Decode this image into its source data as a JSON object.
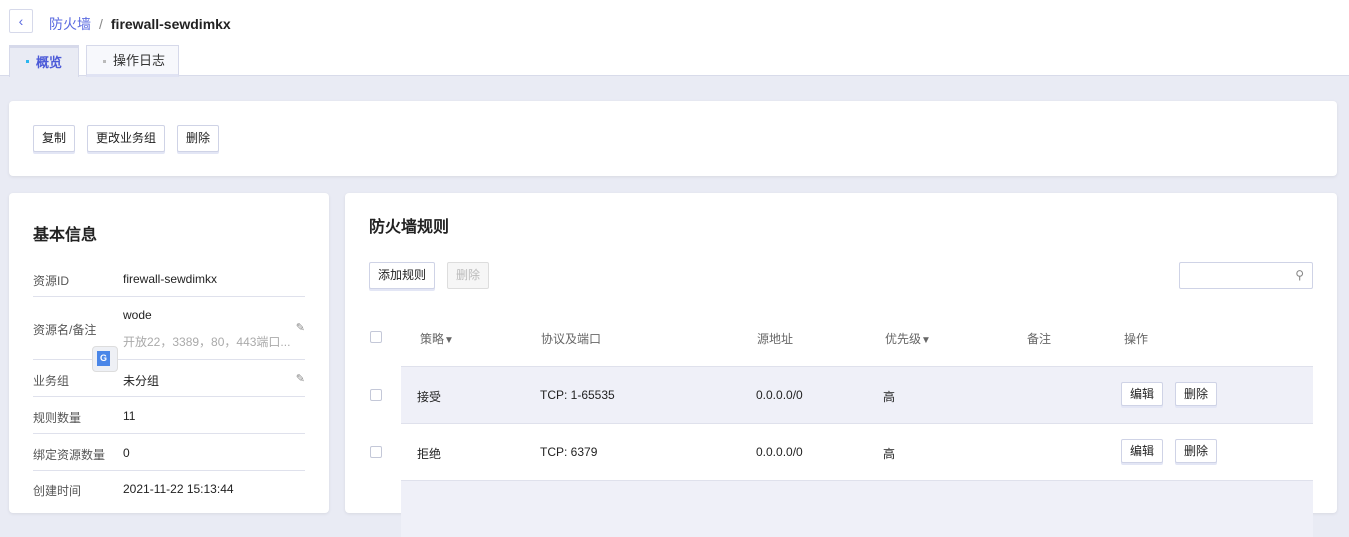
{
  "breadcrumb": {
    "parent": "防火墙",
    "separator": "/",
    "current": "firewall-sewdimkx"
  },
  "tabs": [
    {
      "label": "概览",
      "active": true
    },
    {
      "label": "操作日志",
      "active": false
    }
  ],
  "actions": {
    "copy": "复制",
    "change_group": "更改业务组",
    "delete": "删除"
  },
  "basic_info": {
    "title": "基本信息",
    "rows": [
      {
        "label": "资源ID",
        "value": "firewall-sewdimkx"
      },
      {
        "label": "资源名/备注",
        "value": "wode",
        "note": "开放22，3389，80，443端口..."
      },
      {
        "label": "业务组",
        "value": "未分组"
      },
      {
        "label": "规则数量",
        "value": "11"
      },
      {
        "label": "绑定资源数量",
        "value": "0"
      },
      {
        "label": "创建时间",
        "value": "2021-11-22 15:13:44"
      }
    ]
  },
  "rules": {
    "title": "防火墙规则",
    "add": "添加规则",
    "delete": "删除",
    "search_placeholder": "",
    "columns": [
      "策略",
      "协议及端口",
      "源地址",
      "优先级",
      "备注",
      "操作"
    ],
    "rows": [
      {
        "policy": "接受",
        "protocol": "TCP: 1-65535",
        "source": "0.0.0.0/0",
        "priority": "高",
        "note": "",
        "edit": "编辑",
        "delete": "删除"
      },
      {
        "policy": "拒绝",
        "protocol": "TCP: 6379",
        "source": "0.0.0.0/0",
        "priority": "高",
        "note": "",
        "edit": "编辑",
        "delete": "删除"
      }
    ]
  },
  "colors": {
    "accent": "#5a6ae0",
    "background": "#e9ebf4",
    "row_alt": "#eff0f8"
  }
}
